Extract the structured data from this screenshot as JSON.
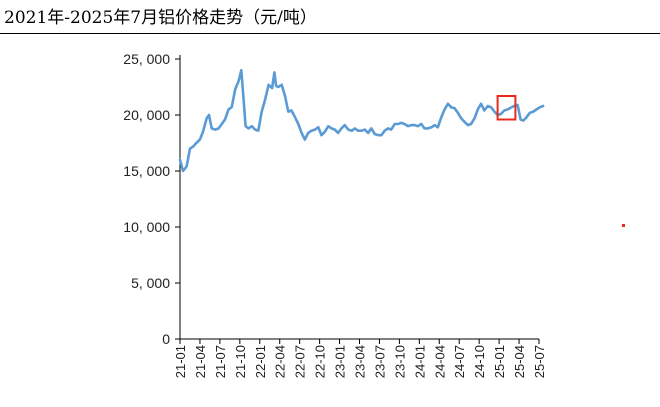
{
  "title": "2021年-2025年7月铝价格走势（元/吨）",
  "colors": {
    "line": "#5b9bd5",
    "highlight": "#e8291c",
    "axis": "#000000"
  },
  "chart_data": {
    "type": "line",
    "title": "2021年-2025年7月铝价格走势（元/吨）",
    "xlabel": "",
    "ylabel": "",
    "ylim": [
      0,
      25000
    ],
    "y_ticks": [
      0,
      5000,
      10000,
      15000,
      20000,
      25000
    ],
    "y_tick_labels": [
      "0",
      "5, 000",
      "10, 000",
      "15, 000",
      "20, 000",
      "25, 000"
    ],
    "x_tick_labels": [
      "21-01",
      "21-04",
      "21-07",
      "21-10",
      "22-01",
      "22-04",
      "22-07",
      "22-10",
      "23-01",
      "23-04",
      "23-07",
      "23-10",
      "24-01",
      "24-04",
      "24-07",
      "24-10",
      "25-01",
      "25-04",
      "25-07"
    ],
    "grid": false,
    "legend": "none",
    "series": [
      {
        "x": [
          "2021-01-01",
          "2021-01-15",
          "2021-02-01",
          "2021-02-15",
          "2021-03-01",
          "2021-03-15",
          "2021-04-01",
          "2021-04-15",
          "2021-05-01",
          "2021-05-12",
          "2021-05-25",
          "2021-06-10",
          "2021-06-25",
          "2021-07-10",
          "2021-07-25",
          "2021-08-10",
          "2021-08-25",
          "2021-09-10",
          "2021-09-25",
          "2021-10-08",
          "2021-10-18",
          "2021-10-28",
          "2021-11-10",
          "2021-11-25",
          "2021-12-10",
          "2021-12-25",
          "2022-01-10",
          "2022-01-25",
          "2022-02-10",
          "2022-02-25",
          "2022-03-07",
          "2022-03-15",
          "2022-03-25",
          "2022-04-10",
          "2022-04-25",
          "2022-05-10",
          "2022-05-25",
          "2022-06-10",
          "2022-06-25",
          "2022-07-10",
          "2022-07-25",
          "2022-08-10",
          "2022-08-25",
          "2022-09-10",
          "2022-09-25",
          "2022-10-10",
          "2022-10-25",
          "2022-11-10",
          "2022-11-25",
          "2022-12-10",
          "2022-12-25",
          "2023-01-10",
          "2023-01-25",
          "2023-02-10",
          "2023-02-25",
          "2023-03-10",
          "2023-03-25",
          "2023-04-10",
          "2023-04-25",
          "2023-05-10",
          "2023-05-25",
          "2023-06-10",
          "2023-06-25",
          "2023-07-10",
          "2023-07-25",
          "2023-08-10",
          "2023-08-25",
          "2023-09-10",
          "2023-09-25",
          "2023-10-10",
          "2023-10-25",
          "2023-11-10",
          "2023-11-25",
          "2023-12-10",
          "2023-12-25",
          "2024-01-10",
          "2024-01-25",
          "2024-02-10",
          "2024-02-25",
          "2024-03-10",
          "2024-03-25",
          "2024-04-10",
          "2024-04-25",
          "2024-05-10",
          "2024-05-25",
          "2024-06-10",
          "2024-06-25",
          "2024-07-10",
          "2024-07-25",
          "2024-08-10",
          "2024-08-25",
          "2024-09-10",
          "2024-09-25",
          "2024-10-10",
          "2024-10-25",
          "2024-11-10",
          "2024-11-25",
          "2024-12-10",
          "2024-12-25",
          "2025-01-10",
          "2025-01-25",
          "2025-02-10",
          "2025-02-25",
          "2025-03-10",
          "2025-03-25",
          "2025-04-08",
          "2025-04-20",
          "2025-05-05",
          "2025-05-20",
          "2025-06-05",
          "2025-06-20",
          "2025-07-05",
          "2025-07-20"
        ],
        "values": [
          16000,
          15000,
          15400,
          17000,
          17200,
          17500,
          17800,
          18500,
          19700,
          20000,
          18800,
          18700,
          18800,
          19200,
          19600,
          20500,
          20700,
          22300,
          23000,
          24000,
          21500,
          19000,
          18800,
          19000,
          18700,
          18600,
          20300,
          21300,
          22700,
          22400,
          23800,
          22600,
          22500,
          22700,
          21700,
          20300,
          20400,
          19800,
          19200,
          18400,
          17800,
          18400,
          18600,
          18700,
          18900,
          18200,
          18500,
          19000,
          18800,
          18700,
          18400,
          18800,
          19100,
          18700,
          18600,
          18800,
          18600,
          18600,
          18700,
          18400,
          18800,
          18300,
          18200,
          18200,
          18600,
          18800,
          18700,
          19200,
          19200,
          19300,
          19200,
          19000,
          19100,
          19100,
          19000,
          19200,
          18800,
          18800,
          18900,
          19100,
          18900,
          19800,
          20500,
          21000,
          20700,
          20600,
          20200,
          19700,
          19400,
          19100,
          19200,
          19700,
          20500,
          21000,
          20400,
          20800,
          20700,
          20300,
          20000,
          20100,
          20400,
          20500,
          20700,
          20800,
          20900,
          19600,
          19500,
          19800,
          20200,
          20300,
          20500,
          20700,
          20800
        ]
      }
    ],
    "annotations": [
      "highlight box around 25-01 to 25-04"
    ]
  }
}
